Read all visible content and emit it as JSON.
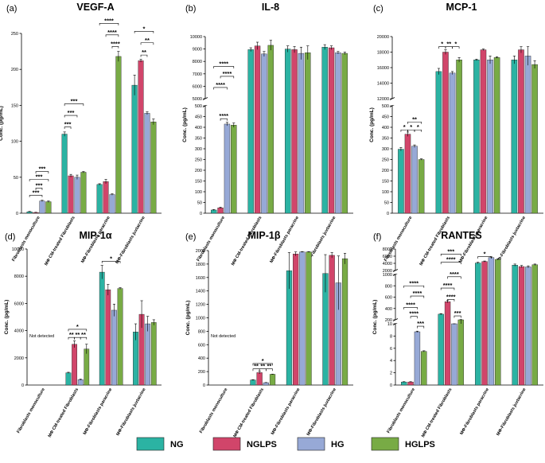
{
  "chart_data": [
    {
      "type": "bar",
      "panel": "(a)",
      "title": "VEGF-A",
      "ylabel": "Conc. (pg/mL)",
      "ylim": [
        0,
        250
      ],
      "yticks": [
        0,
        50,
        100,
        150,
        200,
        250
      ],
      "categories": [
        "Fibroblasts monoculture",
        "MΦ CM-treated Fibroblasts",
        "MΦ-Fibroblasts paracrine",
        "MΦ-Fibroblasts juxtacrine"
      ],
      "series": [
        {
          "name": "NG",
          "values": [
            2,
            110,
            40,
            178
          ],
          "errors": [
            0.5,
            3,
            1,
            14
          ]
        },
        {
          "name": "NGLPS",
          "values": [
            1,
            52,
            44,
            212
          ],
          "errors": [
            0.3,
            2,
            3,
            2
          ]
        },
        {
          "name": "HG",
          "values": [
            17,
            50,
            26,
            139
          ],
          "errors": [
            1,
            3,
            1,
            2
          ]
        },
        {
          "name": "HGLPS",
          "values": [
            16,
            57,
            218,
            127
          ],
          "errors": [
            1,
            1,
            7,
            4
          ]
        }
      ],
      "annotations": [
        {
          "cat": 0,
          "from": 0,
          "to": 2,
          "level": 25,
          "label": "***"
        },
        {
          "cat": 0,
          "from": 0,
          "to": 3,
          "level": 47,
          "label": "***"
        },
        {
          "cat": 0,
          "from": 1,
          "to": 2,
          "level": 35,
          "label": "***"
        },
        {
          "cat": 0,
          "from": 1,
          "to": 3,
          "level": 58,
          "label": "***"
        },
        {
          "cat": 1,
          "from": 0,
          "to": 1,
          "level": 120,
          "label": "***"
        },
        {
          "cat": 1,
          "from": 0,
          "to": 2,
          "level": 136,
          "label": "***"
        },
        {
          "cat": 1,
          "from": 0,
          "to": 3,
          "level": 152,
          "label": "***"
        },
        {
          "cat": 2,
          "from": 2,
          "to": 3,
          "level": 232,
          "label": "****"
        },
        {
          "cat": 2,
          "from": 1,
          "to": 3,
          "level": 248,
          "label": "****"
        },
        {
          "cat": 2,
          "from": 0,
          "to": 3,
          "level": 264,
          "label": "****"
        },
        {
          "cat": 3,
          "from": 1,
          "to": 2,
          "level": 220,
          "label": "**"
        },
        {
          "cat": 3,
          "from": 1,
          "to": 3,
          "level": 237,
          "label": "**"
        },
        {
          "cat": 3,
          "from": 0,
          "to": 3,
          "level": 253,
          "label": "*"
        }
      ]
    },
    {
      "type": "bar",
      "panel": "(b)",
      "title": "IL-8",
      "ylabel": "Conc. (pg/mL)",
      "ylim": [
        0,
        10000
      ],
      "yticks": [
        0,
        50,
        100,
        150,
        200,
        250,
        300,
        350,
        400,
        450,
        500,
        5000,
        6000,
        7000,
        8000,
        9000,
        10000
      ],
      "axis_break": [
        500,
        5000
      ],
      "categories": [
        "Fibroblasts monoculture",
        "MΦ CM-treated Fibroblasts",
        "MΦ-Fibroblasts paracrine",
        "MΦ-Fibroblasts juxtacrine"
      ],
      "series": [
        {
          "name": "NG",
          "values": [
            15,
            8950,
            9000,
            9150
          ],
          "errors": [
            2,
            150,
            250,
            200
          ]
        },
        {
          "name": "NGLPS",
          "values": [
            25,
            9250,
            8950,
            9100
          ],
          "errors": [
            3,
            300,
            250,
            150
          ]
        },
        {
          "name": "HG",
          "values": [
            415,
            8600,
            8650,
            8700
          ],
          "errors": [
            8,
            200,
            500,
            100
          ]
        },
        {
          "name": "HGLPS",
          "values": [
            410,
            9300,
            8700,
            8650
          ],
          "errors": [
            10,
            400,
            550,
            100
          ]
        }
      ],
      "annotations": [
        {
          "cat": 0,
          "from": 1,
          "to": 2,
          "level": 440,
          "label": "****"
        },
        {
          "cat": 0,
          "from": 0,
          "to": 2,
          "level": 5900,
          "label": "****"
        },
        {
          "cat": 0,
          "from": 1,
          "to": 3,
          "level": 6800,
          "label": "****"
        },
        {
          "cat": 0,
          "from": 0,
          "to": 3,
          "level": 7600,
          "label": "****"
        }
      ]
    },
    {
      "type": "bar",
      "panel": "(c)",
      "title": "MCP-1",
      "ylabel": "Conc. (pg/mL)",
      "ylim": [
        0,
        20000
      ],
      "yticks": [
        0,
        50,
        100,
        150,
        200,
        250,
        300,
        350,
        400,
        450,
        500,
        12000,
        14000,
        16000,
        18000,
        20000
      ],
      "axis_break": [
        500,
        12000
      ],
      "categories": [
        "Fibroblasts monoculture",
        "MΦ CM-treated Fibroblasts",
        "MΦ-Fibroblasts paracrine",
        "MΦ-Fibroblasts juxtacrine"
      ],
      "series": [
        {
          "name": "NG",
          "values": [
            298,
            15500,
            17000,
            17000
          ],
          "errors": [
            8,
            400,
            100,
            500
          ]
        },
        {
          "name": "NGLPS",
          "values": [
            368,
            18000,
            18300,
            18300
          ],
          "errors": [
            10,
            300,
            100,
            400
          ]
        },
        {
          "name": "HG",
          "values": [
            312,
            15300,
            17000,
            17500
          ],
          "errors": [
            6,
            200,
            500,
            1200
          ]
        },
        {
          "name": "HGLPS",
          "values": [
            250,
            17000,
            17300,
            16400
          ],
          "errors": [
            3,
            300,
            100,
            500
          ]
        }
      ],
      "annotations": [
        {
          "cat": 0,
          "from": 0,
          "to": 1,
          "level": 388,
          "label": "*"
        },
        {
          "cat": 0,
          "from": 1,
          "to": 2,
          "level": 388,
          "label": "*"
        },
        {
          "cat": 0,
          "from": 2,
          "to": 3,
          "level": 388,
          "label": "*"
        },
        {
          "cat": 0,
          "from": 1,
          "to": 3,
          "level": 425,
          "label": "**"
        },
        {
          "cat": 1,
          "from": 0,
          "to": 1,
          "level": 18700,
          "label": "*"
        },
        {
          "cat": 1,
          "from": 1,
          "to": 2,
          "level": 18700,
          "label": "**"
        },
        {
          "cat": 1,
          "from": 2,
          "to": 3,
          "level": 18700,
          "label": "*"
        }
      ]
    },
    {
      "type": "bar",
      "panel": "(d)",
      "title": "MIP-1α",
      "ylabel": "Conc. (pg/mL)",
      "ylim": [
        0,
        10000
      ],
      "yticks": [
        0,
        2000,
        4000,
        6000,
        8000,
        10000
      ],
      "note": "Not detected",
      "categories": [
        "Fibroblasts monoculture",
        "MΦ CM-treated Fibroblasts",
        "MΦ-Fibroblasts paracrine",
        "MΦ-Fibroblasts juxtacrine"
      ],
      "series": [
        {
          "name": "NG",
          "values": [
            null,
            900,
            8300,
            3900
          ],
          "errors": [
            0,
            40,
            500,
            600
          ]
        },
        {
          "name": "NGLPS",
          "values": [
            null,
            3000,
            7000,
            5200
          ],
          "errors": [
            0,
            250,
            400,
            1000
          ]
        },
        {
          "name": "HG",
          "values": [
            null,
            400,
            5500,
            4500
          ],
          "errors": [
            0,
            40,
            450,
            550
          ]
        },
        {
          "name": "HGLPS",
          "values": [
            null,
            2650,
            7100,
            4600
          ],
          "errors": [
            0,
            350,
            60,
            200
          ]
        }
      ],
      "annotations": [
        {
          "cat": 1,
          "from": 0,
          "to": 1,
          "level": 3500,
          "label": "**"
        },
        {
          "cat": 1,
          "from": 1,
          "to": 2,
          "level": 3500,
          "label": "**"
        },
        {
          "cat": 1,
          "from": 2,
          "to": 3,
          "level": 3500,
          "label": "**"
        },
        {
          "cat": 1,
          "from": 0,
          "to": 3,
          "level": 4100,
          "label": "*"
        },
        {
          "cat": 2,
          "from": 0,
          "to": 3,
          "level": 9100,
          "label": "*"
        }
      ]
    },
    {
      "type": "bar",
      "panel": "(e)",
      "title": "MIP-1β",
      "ylabel": "Conc. (pg/mL)",
      "ylim": [
        0,
        2000
      ],
      "yticks": [
        0,
        200,
        400,
        600,
        800,
        1000,
        1200,
        1400,
        1600,
        1800,
        2000
      ],
      "note": "Not detected",
      "categories": [
        "Fibroblasts monoculture",
        "MΦ CM-treated Fibroblasts",
        "MΦ-Fibroblasts paracrine",
        "MΦ-Fibroblasts juxtacrine"
      ],
      "series": [
        {
          "name": "NG",
          "values": [
            null,
            75,
            1700,
            1660
          ],
          "errors": [
            0,
            5,
            270,
            280
          ]
        },
        {
          "name": "NGLPS",
          "values": [
            null,
            185,
            1950,
            1930
          ],
          "errors": [
            0,
            20,
            30,
            40
          ]
        },
        {
          "name": "HG",
          "values": [
            null,
            35,
            1980,
            1520
          ],
          "errors": [
            0,
            3,
            5,
            400
          ]
        },
        {
          "name": "HGLPS",
          "values": [
            null,
            160,
            1980,
            1880
          ],
          "errors": [
            0,
            3,
            5,
            80
          ]
        }
      ],
      "annotations": [
        {
          "cat": 1,
          "from": 0,
          "to": 1,
          "level": 240,
          "label": "**"
        },
        {
          "cat": 1,
          "from": 1,
          "to": 2,
          "level": 240,
          "label": "**"
        },
        {
          "cat": 1,
          "from": 2,
          "to": 3,
          "level": 240,
          "label": "**"
        },
        {
          "cat": 1,
          "from": 0,
          "to": 3,
          "level": 320,
          "label": "*"
        }
      ]
    },
    {
      "type": "bar",
      "panel": "(f)",
      "title": "RANTES",
      "ylabel": "Conc. (pg/mL)",
      "ylim": [
        0,
        8000
      ],
      "yticks": [
        0,
        2,
        4,
        6,
        8,
        10,
        200,
        400,
        600,
        800,
        1000,
        2000,
        4000,
        6000,
        8000
      ],
      "axis_breaks": [
        [
          10,
          200
        ],
        [
          1000,
          2000
        ]
      ],
      "categories": [
        "Fibroblasts monoculture",
        "MΦ CM-treated Fibroblasts",
        "MΦ-Fibroblasts paracrine",
        "MΦ-Fibroblasts juxtacrine"
      ],
      "series": [
        {
          "name": "NG",
          "values": [
            0.5,
            300,
            4100,
            3500
          ],
          "errors": [
            0.05,
            10,
            200,
            300
          ]
        },
        {
          "name": "NGLPS",
          "values": [
            0.5,
            520,
            4500,
            3100
          ],
          "errors": [
            0.05,
            20,
            150,
            300
          ]
        },
        {
          "name": "HG",
          "values": [
            8.7,
            110,
            5600,
            3000
          ],
          "errors": [
            0.1,
            5,
            200,
            300
          ]
        },
        {
          "name": "HGLPS",
          "values": [
            5.5,
            200,
            5100,
            3600
          ],
          "errors": [
            0.1,
            5,
            200,
            200
          ]
        }
      ],
      "annotations": [
        {
          "cat": 0,
          "from": 2,
          "to": 3,
          "level": 9.6,
          "label": "***"
        },
        {
          "cat": 0,
          "from": 1,
          "to": 2,
          "level": 260,
          "label": "****"
        },
        {
          "cat": 0,
          "from": 0,
          "to": 2,
          "level": 420,
          "label": "****"
        },
        {
          "cat": 0,
          "from": 1,
          "to": 3,
          "level": 620,
          "label": "****"
        },
        {
          "cat": 0,
          "from": 0,
          "to": 3,
          "level": 800,
          "label": "****"
        },
        {
          "cat": 1,
          "from": 2,
          "to": 3,
          "level": 270,
          "label": "***"
        },
        {
          "cat": 1,
          "from": 1,
          "to": 2,
          "level": 560,
          "label": "****"
        },
        {
          "cat": 1,
          "from": 0,
          "to": 2,
          "level": 760,
          "label": "****"
        },
        {
          "cat": 1,
          "from": 1,
          "to": 3,
          "level": 960,
          "label": "****"
        },
        {
          "cat": 1,
          "from": 0,
          "to": 3,
          "level": 4300,
          "label": "****"
        },
        {
          "cat": 1,
          "from": 0,
          "to": 3,
          "level": 6600,
          "label": "***"
        },
        {
          "cat": 2,
          "from": 0,
          "to": 2,
          "level": 5900,
          "label": "*"
        }
      ]
    }
  ],
  "legend": [
    {
      "name": "NG",
      "color": "#2bb3a3"
    },
    {
      "name": "NGLPS",
      "color": "#d1456a"
    },
    {
      "name": "HG",
      "color": "#97a9d6"
    },
    {
      "name": "HGLPS",
      "color": "#78ab45"
    }
  ]
}
